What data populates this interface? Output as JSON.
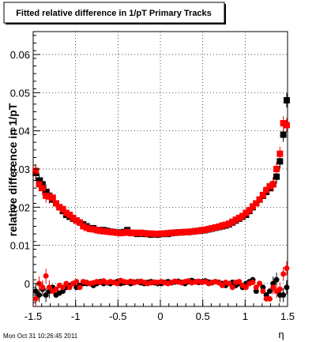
{
  "chart_data": {
    "type": "scatter",
    "title": "Fitted relative difference in 1/pT  Primary Tracks",
    "xlabel": "η",
    "ylabel": "relative difference in 1/pT",
    "xlim": [
      -1.5,
      1.5
    ],
    "ylim": [
      -0.006,
      0.066
    ],
    "x_ticks": [
      -1.5,
      -1,
      -0.5,
      0,
      0.5,
      1,
      1.5
    ],
    "x_tick_labels": [
      "-1.5",
      "-1",
      "-0.5",
      "0",
      "0.5",
      "1",
      "1.5"
    ],
    "y_ticks": [
      0,
      0.01,
      0.02,
      0.03,
      0.04,
      0.05,
      0.06
    ],
    "y_tick_labels": [
      "0",
      "0.01",
      "0.02",
      "0.03",
      "0.04",
      "0.05",
      "0.06"
    ],
    "grid": true,
    "x": [
      -1.47,
      -1.43,
      -1.39,
      -1.35,
      -1.31,
      -1.27,
      -1.23,
      -1.19,
      -1.15,
      -1.11,
      -1.07,
      -1.03,
      -0.99,
      -0.95,
      -0.91,
      -0.87,
      -0.83,
      -0.79,
      -0.75,
      -0.71,
      -0.67,
      -0.63,
      -0.59,
      -0.55,
      -0.51,
      -0.47,
      -0.43,
      -0.39,
      -0.35,
      -0.31,
      -0.27,
      -0.23,
      -0.19,
      -0.15,
      -0.11,
      -0.07,
      -0.03,
      0.01,
      0.05,
      0.09,
      0.13,
      0.17,
      0.21,
      0.25,
      0.29,
      0.33,
      0.37,
      0.41,
      0.45,
      0.49,
      0.53,
      0.57,
      0.61,
      0.65,
      0.69,
      0.73,
      0.77,
      0.81,
      0.85,
      0.89,
      0.93,
      0.97,
      1.01,
      1.05,
      1.09,
      1.13,
      1.17,
      1.21,
      1.25,
      1.29,
      1.33,
      1.37,
      1.41,
      1.45,
      1.49
    ],
    "series": [
      {
        "color": "#000000",
        "marker": "square",
        "values": [
          0.029,
          0.027,
          0.026,
          0.024,
          0.023,
          0.022,
          0.021,
          0.02,
          0.019,
          0.018,
          0.0175,
          0.017,
          0.0165,
          0.016,
          0.0155,
          0.015,
          0.0145,
          0.0145,
          0.014,
          0.014,
          0.014,
          0.0138,
          0.0136,
          0.0135,
          0.0134,
          0.0133,
          0.0135,
          0.014,
          0.0133,
          0.0132,
          0.013,
          0.0132,
          0.013,
          0.013,
          0.0128,
          0.013,
          0.0128,
          0.013,
          0.013,
          0.013,
          0.0132,
          0.0133,
          0.0134,
          0.0134,
          0.0135,
          0.0135,
          0.0136,
          0.0137,
          0.0138,
          0.0139,
          0.014,
          0.0142,
          0.0144,
          0.0146,
          0.0148,
          0.015,
          0.0152,
          0.0155,
          0.016,
          0.0165,
          0.017,
          0.0175,
          0.018,
          0.019,
          0.02,
          0.021,
          0.022,
          0.023,
          0.024,
          0.025,
          0.026,
          0.028,
          0.032,
          0.039,
          0.048
        ]
      },
      {
        "color": "#ff0000",
        "marker": "square",
        "values": [
          0.0295,
          0.026,
          0.025,
          0.023,
          0.0228,
          0.0225,
          0.021,
          0.02,
          0.0195,
          0.0185,
          0.018,
          0.0172,
          0.0165,
          0.016,
          0.015,
          0.0146,
          0.0143,
          0.0142,
          0.014,
          0.0138,
          0.0137,
          0.0136,
          0.0135,
          0.0134,
          0.0133,
          0.0132,
          0.0133,
          0.0135,
          0.0132,
          0.0133,
          0.0132,
          0.0133,
          0.0132,
          0.0131,
          0.0131,
          0.013,
          0.013,
          0.0131,
          0.0131,
          0.0132,
          0.0133,
          0.0133,
          0.0134,
          0.0134,
          0.0135,
          0.0135,
          0.0136,
          0.0137,
          0.0138,
          0.014,
          0.0141,
          0.0143,
          0.0145,
          0.0147,
          0.0149,
          0.0152,
          0.0154,
          0.0157,
          0.0162,
          0.0167,
          0.0172,
          0.0177,
          0.0185,
          0.0192,
          0.0202,
          0.021,
          0.022,
          0.0232,
          0.0245,
          0.0255,
          0.026,
          0.03,
          0.034,
          0.042,
          0.0415
        ]
      },
      {
        "color": "#000000",
        "marker": "circle",
        "values": [
          -0.002,
          -0.003,
          -0.0015,
          -0.003,
          -0.002,
          -0.001,
          -0.003,
          -0.0025,
          -0.002,
          -0.001,
          -0.0005,
          0.0,
          -0.001,
          -0.0005,
          0.0,
          0.0,
          0.0,
          -0.0005,
          0.0,
          0.0005,
          0.0,
          0.0002,
          0.0,
          0.0003,
          0.0005,
          0.0,
          0.0002,
          0.0003,
          0.0,
          0.0004,
          0.0005,
          0.0002,
          0.0,
          0.0003,
          0.0005,
          0.0002,
          0.0,
          0.0,
          0.0003,
          0.0005,
          0.0002,
          0.0004,
          0.0006,
          0.0003,
          0.0,
          0.0005,
          0.0008,
          0.0005,
          0.0003,
          0.0005,
          0.0007,
          0.0004,
          0.0002,
          0.0005,
          0.0003,
          0.0,
          -0.0005,
          0.0,
          0.0003,
          -0.0005,
          0.0,
          -0.001,
          0.0,
          0.0005,
          0.001,
          -0.002,
          0.0,
          -0.001,
          -0.003,
          -0.002,
          0.0,
          0.001,
          -0.003,
          -0.003,
          -0.001
        ]
      },
      {
        "color": "#ff0000",
        "marker": "circle",
        "values": [
          -0.004,
          0.0,
          -0.001,
          0.002,
          -0.001,
          -0.002,
          -0.0015,
          -0.0005,
          -0.001,
          0.0,
          -0.001,
          0.0,
          0.0005,
          -0.001,
          0.0005,
          0.0003,
          0.0,
          0.0002,
          0.0005,
          0.0003,
          0.0007,
          0.0002,
          0.0005,
          0.0003,
          0.0,
          0.0008,
          0.0005,
          0.0003,
          0.0006,
          0.0002,
          0.0004,
          0.0006,
          0.0003,
          0.0,
          0.0002,
          0.0004,
          0.0003,
          0.0005,
          0.0002,
          0.0,
          0.0003,
          0.0006,
          0.0004,
          0.0002,
          0.0005,
          0.0007,
          0.0002,
          0.0004,
          0.0006,
          0.0003,
          0.0005,
          0.0,
          0.0003,
          0.0005,
          0.0002,
          -0.0005,
          0.0003,
          0.0,
          -0.001,
          0.0003,
          0.0005,
          -0.0005,
          -0.001,
          0.0,
          0.0003,
          -0.001,
          0.0,
          -0.002,
          -0.004,
          -0.004,
          -0.001,
          -0.002,
          -0.0015,
          0.0025,
          0.004
        ]
      }
    ]
  },
  "footer_text": "Mon Oct 31 10:26:45 2011"
}
